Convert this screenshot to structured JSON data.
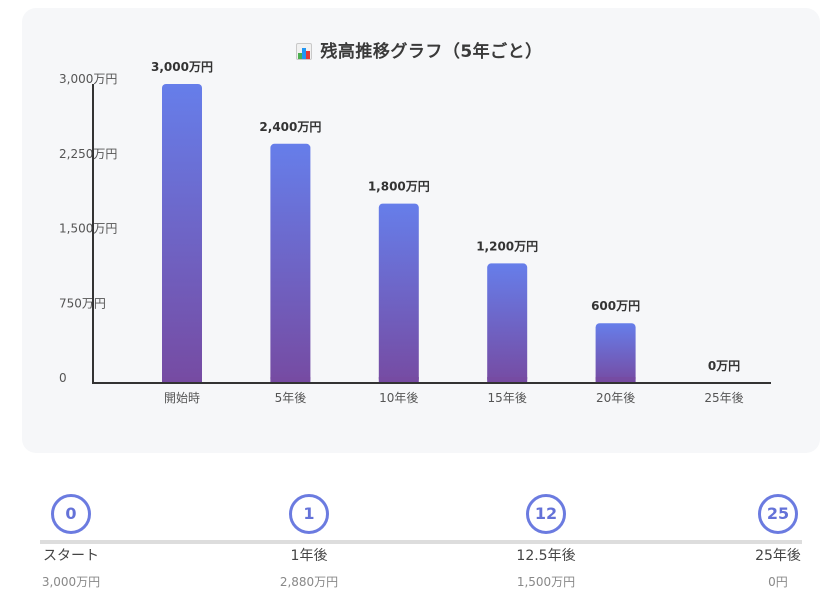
{
  "chart_data": {
    "type": "bar",
    "title": "残高推移グラフ（5年ごと）",
    "title_icon": "bar-chart-icon",
    "categories": [
      "開始時",
      "5年後",
      "10年後",
      "15年後",
      "20年後",
      "25年後"
    ],
    "values": [
      3000,
      2400,
      1800,
      1200,
      600,
      0
    ],
    "data_labels": [
      "3,000万円",
      "2,400万円",
      "1,800万円",
      "1,200万円",
      "600万円",
      "0万円"
    ],
    "unit": "万円",
    "yticks": [
      0,
      750,
      1500,
      2250,
      3000
    ],
    "ytick_labels": [
      "0",
      "750万円",
      "1,500万円",
      "2,250万円",
      "3,000万円"
    ],
    "ylim": [
      0,
      3000
    ],
    "xlabel": "",
    "ylabel": "",
    "grid": false,
    "colors": {
      "bar_top": "#667eea",
      "bar_bottom": "#764ba2",
      "axis": "#333333"
    }
  },
  "timeline": {
    "stops": [
      {
        "badge": "0",
        "label": "スタート",
        "value": "3,000万円"
      },
      {
        "badge": "1",
        "label": "1年後",
        "value": "2,880万円"
      },
      {
        "badge": "12",
        "label": "12.5年後",
        "value": "1,500万円"
      },
      {
        "badge": "25",
        "label": "25年後",
        "value": "0円"
      }
    ],
    "colors": {
      "accent": "#6b7be0",
      "line": "#dddddd"
    }
  }
}
